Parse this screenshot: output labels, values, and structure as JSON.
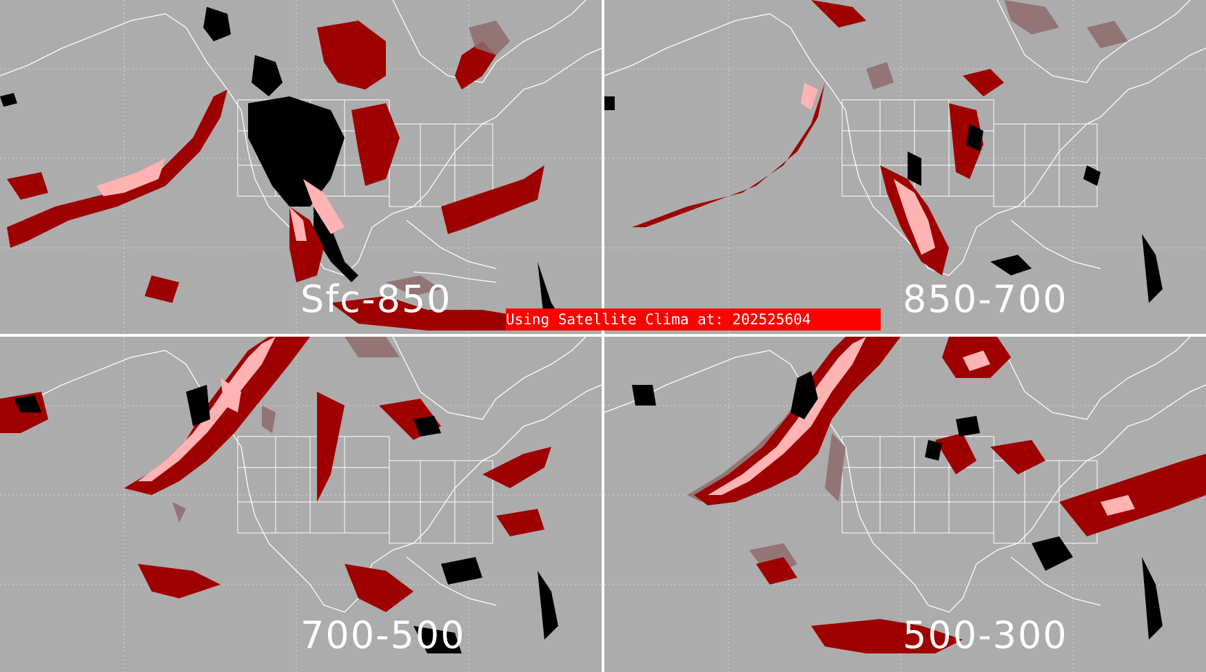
{
  "banner": {
    "text": "Using Satellite Clima at: 202525604",
    "color": "#ff0000"
  },
  "panels": [
    {
      "label": "Sfc-850"
    },
    {
      "label": "850-700"
    },
    {
      "label": "700-500"
    },
    {
      "label": "500-300"
    }
  ],
  "colors": {
    "background": "#acacac",
    "category_dark_red": "#9e0000",
    "category_light_pink": "#ffb3b3",
    "category_dusty_rose": "#8e6b6b",
    "category_black": "#000000",
    "boundaries": "#ffffff"
  }
}
